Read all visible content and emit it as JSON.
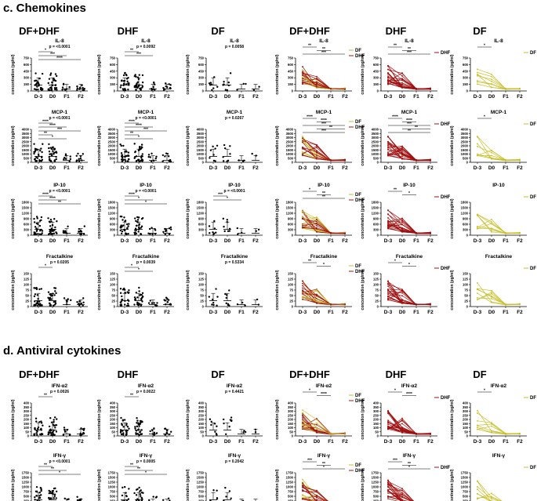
{
  "sections": [
    {
      "title": "c. Chemokines",
      "columns": [
        "DF+DHF",
        "DHF",
        "DF",
        "DF+DHF",
        "DHF",
        "DF"
      ],
      "rows": [
        {
          "analyte": "IL-8",
          "ymax": 750,
          "yticks": [
            "0",
            "150",
            "300",
            "450",
            "600",
            "750"
          ],
          "pvals": [
            "p = <0.0001",
            "p = 0.0092",
            "p = 0.0058"
          ],
          "scatter_stars": [
            [
              "*",
              "***",
              "****"
            ],
            [
              "**",
              "***"
            ],
            []
          ],
          "line_stars": [
            [
              "**",
              "**",
              "***"
            ],
            [
              "**",
              "**",
              "***"
            ],
            [
              "*"
            ]
          ]
        },
        {
          "analyte": "MCP-1",
          "ymax": 4000,
          "yticks": [
            "0",
            "500",
            "1000",
            "1500",
            "2000",
            "2500",
            "3000",
            "3500",
            "4000"
          ],
          "pvals": [
            "p = <0.0001",
            "p = <0.0001",
            "p = 0.0267"
          ],
          "scatter_stars": [
            [
              "****",
              "****",
              "***",
              "**",
              "*"
            ],
            [
              "****",
              "****",
              "***",
              "**",
              "*"
            ],
            []
          ],
          "line_stars": [
            [
              "****",
              "****",
              "***",
              "**",
              "***"
            ],
            [
              "****",
              "****",
              "***",
              "**",
              "**"
            ],
            [
              "*"
            ]
          ]
        },
        {
          "analyte": "IP-10",
          "ymax": 2000,
          "yticks": [
            "0",
            "300",
            "600",
            "900",
            "1200",
            "1500",
            "1800"
          ],
          "pvals": [
            "p = <0.0001",
            "p = <0.0001",
            "p = <0.0001"
          ],
          "scatter_stars": [
            [
              "****",
              "****",
              "**"
            ],
            [
              "****",
              "*",
              "*"
            ],
            [
              "***",
              "*"
            ]
          ],
          "line_stars": [
            [
              "*",
              "**",
              "**"
            ],
            [
              "**",
              "*"
            ],
            []
          ]
        },
        {
          "analyte": "Fractalkine",
          "ymax": 150,
          "yticks": [
            "0",
            "25",
            "50",
            "75",
            "100",
            "125",
            "150"
          ],
          "pvals": [
            "p = 0.0205",
            "p = 0.0039",
            "p = 0.5334"
          ],
          "scatter_stars": [
            [
              "*"
            ],
            [
              "*",
              "*"
            ],
            []
          ],
          "line_stars": [
            [
              "**",
              "*"
            ],
            [
              "*",
              "*"
            ],
            []
          ]
        }
      ]
    },
    {
      "title": "d. Antiviral cytokines",
      "columns": [
        "DF+DHF",
        "DHF",
        "DF",
        "DF+DHF",
        "DHF",
        "DF"
      ],
      "rows": [
        {
          "analyte": "IFN-α2",
          "ymax": 400,
          "yticks": [
            "0",
            "50",
            "100",
            "150",
            "200",
            "250",
            "300",
            "350",
            "400"
          ],
          "pvals": [
            "p = 0.0026",
            "p = 0.0022",
            "p = 0.4421"
          ],
          "scatter_stars": [
            [
              "**"
            ],
            [
              "**"
            ],
            []
          ],
          "line_stars": [
            [
              "*",
              "****"
            ],
            [
              "*",
              "****"
            ],
            [
              "*"
            ]
          ]
        },
        {
          "analyte": "IFN-γ",
          "ymax": 1750,
          "yticks": [
            "0",
            "250",
            "500",
            "750",
            "1000",
            "1250",
            "1500",
            "1750"
          ],
          "pvals": [
            "p = <0.0001",
            "p = 0.0005",
            "p = 0.2042"
          ],
          "scatter_stars": [
            [
              "**",
              "**",
              "*"
            ],
            [
              "**",
              "**",
              "*"
            ],
            []
          ],
          "line_stars": [
            [
              "***",
              "**",
              "*"
            ],
            [
              "***",
              "**",
              "*"
            ],
            []
          ]
        }
      ]
    }
  ],
  "x_categories": [
    "D-3",
    "D0",
    "F1",
    "F2"
  ],
  "y_axis_label": "concentration (pg/ml)",
  "legend": {
    "df": "DF",
    "dhf": "DHF"
  },
  "colors": {
    "df": "#c9bf2a",
    "dhf": "#a01010",
    "dots": "#000000"
  }
}
